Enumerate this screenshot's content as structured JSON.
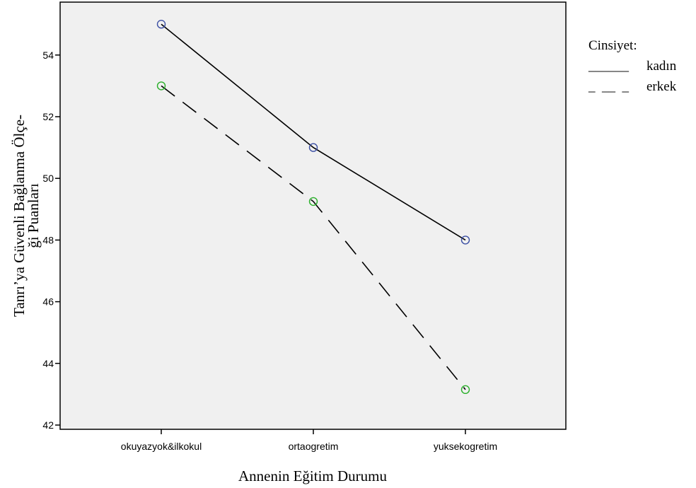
{
  "chart_data": {
    "type": "line",
    "categories": [
      "okuyazyok&ilkokul",
      "ortaogretim",
      "yuksekogretim"
    ],
    "series": [
      {
        "name": "kadın",
        "values": [
          55.0,
          51.0,
          48.0
        ],
        "line_style": "solid",
        "marker_color": "#3b4fa3"
      },
      {
        "name": "erkek",
        "values": [
          53.0,
          49.25,
          43.15
        ],
        "line_style": "dashed",
        "marker_color": "#2bb02b"
      }
    ],
    "xlabel": "Annenin Eğitim Durumu",
    "ylabel": "Tanrı’ya Güvenli Bağlanma Ölçe-ği Puanları",
    "ylim": [
      41.8,
      55.7
    ],
    "yticks": [
      42,
      44,
      46,
      48,
      50,
      52,
      54
    ],
    "plot_background": "#f0f0f0",
    "grid": false,
    "legend": {
      "title": "Cinsiyet:",
      "placement": "right",
      "entries": [
        {
          "swatch": "______",
          "label": "kadın"
        },
        {
          "swatch": "_  __  _",
          "label": "erkek"
        }
      ]
    }
  }
}
